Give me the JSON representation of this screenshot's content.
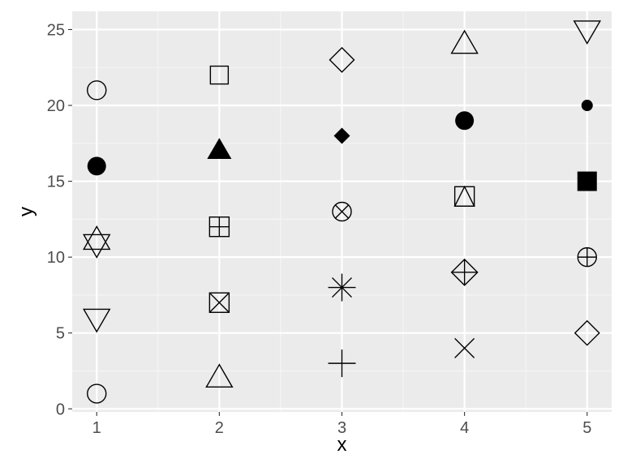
{
  "chart_data": {
    "type": "scatter",
    "xlabel": "x",
    "ylabel": "y",
    "xlim": [
      0.8,
      5.2
    ],
    "ylim": [
      -0.2,
      26.2
    ],
    "x_ticks": [
      1,
      2,
      3,
      4,
      5
    ],
    "y_ticks": [
      0,
      5,
      10,
      15,
      20,
      25
    ],
    "grid": true,
    "colors": {
      "panel_bg": "#ebebeb",
      "grid_major": "#ffffff",
      "grid_minor": "#f5f5f5",
      "tick_text": "#4d4d4d",
      "mark": "#000000"
    },
    "points": [
      {
        "x": 1,
        "y": 1,
        "shape": "circle"
      },
      {
        "x": 2,
        "y": 2,
        "shape": "triangle-up"
      },
      {
        "x": 3,
        "y": 3,
        "shape": "plus"
      },
      {
        "x": 4,
        "y": 4,
        "shape": "cross"
      },
      {
        "x": 5,
        "y": 5,
        "shape": "diamond"
      },
      {
        "x": 1,
        "y": 6,
        "shape": "triangle-down"
      },
      {
        "x": 2,
        "y": 7,
        "shape": "square-cross"
      },
      {
        "x": 3,
        "y": 8,
        "shape": "asterisk"
      },
      {
        "x": 4,
        "y": 9,
        "shape": "diamond-plus"
      },
      {
        "x": 5,
        "y": 10,
        "shape": "circle-plus"
      },
      {
        "x": 1,
        "y": 11,
        "shape": "star-of-david"
      },
      {
        "x": 2,
        "y": 12,
        "shape": "square-plus"
      },
      {
        "x": 3,
        "y": 13,
        "shape": "circle-cross"
      },
      {
        "x": 4,
        "y": 14,
        "shape": "square-triangle"
      },
      {
        "x": 5,
        "y": 15,
        "shape": "square-filled"
      },
      {
        "x": 1,
        "y": 16,
        "shape": "circle-filled"
      },
      {
        "x": 2,
        "y": 17,
        "shape": "triangle-filled"
      },
      {
        "x": 3,
        "y": 18,
        "shape": "diamond-filled"
      },
      {
        "x": 4,
        "y": 19,
        "shape": "circle-filled-large"
      },
      {
        "x": 5,
        "y": 20,
        "shape": "circle-filled-small"
      },
      {
        "x": 1,
        "y": 21,
        "shape": "circle"
      },
      {
        "x": 2,
        "y": 22,
        "shape": "square"
      },
      {
        "x": 3,
        "y": 23,
        "shape": "diamond"
      },
      {
        "x": 4,
        "y": 24,
        "shape": "triangle-up"
      },
      {
        "x": 5,
        "y": 25,
        "shape": "triangle-down"
      }
    ]
  }
}
